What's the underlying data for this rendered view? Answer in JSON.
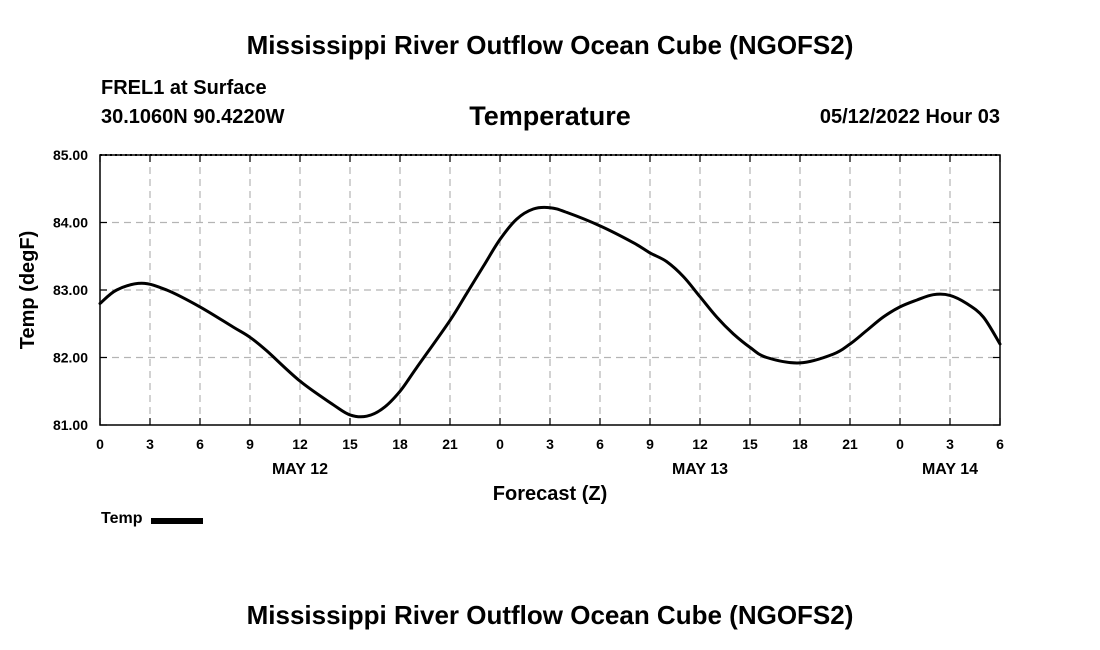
{
  "header": {
    "title": "Mississippi River Outflow Ocean Cube (NGOFS2)",
    "station": "FREL1 at Surface",
    "coords": "30.1060N  90.4220W",
    "datetime": "05/12/2022 Hour 03"
  },
  "footer": {
    "title": "Mississippi River Outflow Ocean Cube (NGOFS2)"
  },
  "legend": {
    "label": "Temp"
  },
  "chart_data": {
    "type": "line",
    "title": "Temperature",
    "xlabel": "Forecast (Z)",
    "ylabel": "Temp (degF)",
    "ylim": [
      81.0,
      85.0
    ],
    "yticks": [
      "81.00",
      "82.00",
      "83.00",
      "84.00",
      "85.00"
    ],
    "xlim": [
      0,
      54
    ],
    "xtick_labels": [
      "0",
      "3",
      "6",
      "9",
      "12",
      "15",
      "18",
      "21",
      "0",
      "3",
      "6",
      "9",
      "12",
      "15",
      "18",
      "21",
      "0",
      "3",
      "6"
    ],
    "date_labels": [
      {
        "label": "MAY 12",
        "hour": 12
      },
      {
        "label": "MAY 13",
        "hour": 36
      },
      {
        "label": "MAY 14",
        "hour": 51
      }
    ],
    "grid": true,
    "legend": "bottom-left",
    "series": [
      {
        "name": "Temp",
        "color": "#000000",
        "x": [
          0,
          1,
          2.5,
          4,
          6,
          8,
          9,
          10,
          12,
          14,
          15,
          16,
          17,
          18,
          19,
          21,
          22,
          23,
          24,
          25,
          26,
          27,
          28,
          30,
          32,
          33,
          34,
          35,
          36,
          37,
          38,
          39,
          40,
          42,
          44,
          45,
          46,
          47,
          48,
          49,
          50,
          51,
          52,
          53,
          54
        ],
        "y": [
          82.8,
          83.0,
          83.1,
          83.0,
          82.75,
          82.45,
          82.3,
          82.1,
          81.65,
          81.3,
          81.15,
          81.13,
          81.25,
          81.5,
          81.85,
          82.55,
          82.95,
          83.35,
          83.75,
          84.05,
          84.2,
          84.22,
          84.15,
          83.95,
          83.7,
          83.55,
          83.42,
          83.2,
          82.9,
          82.6,
          82.35,
          82.15,
          82.0,
          81.92,
          82.05,
          82.2,
          82.4,
          82.6,
          82.75,
          82.85,
          82.93,
          82.92,
          82.8,
          82.6,
          82.2
        ]
      }
    ]
  }
}
